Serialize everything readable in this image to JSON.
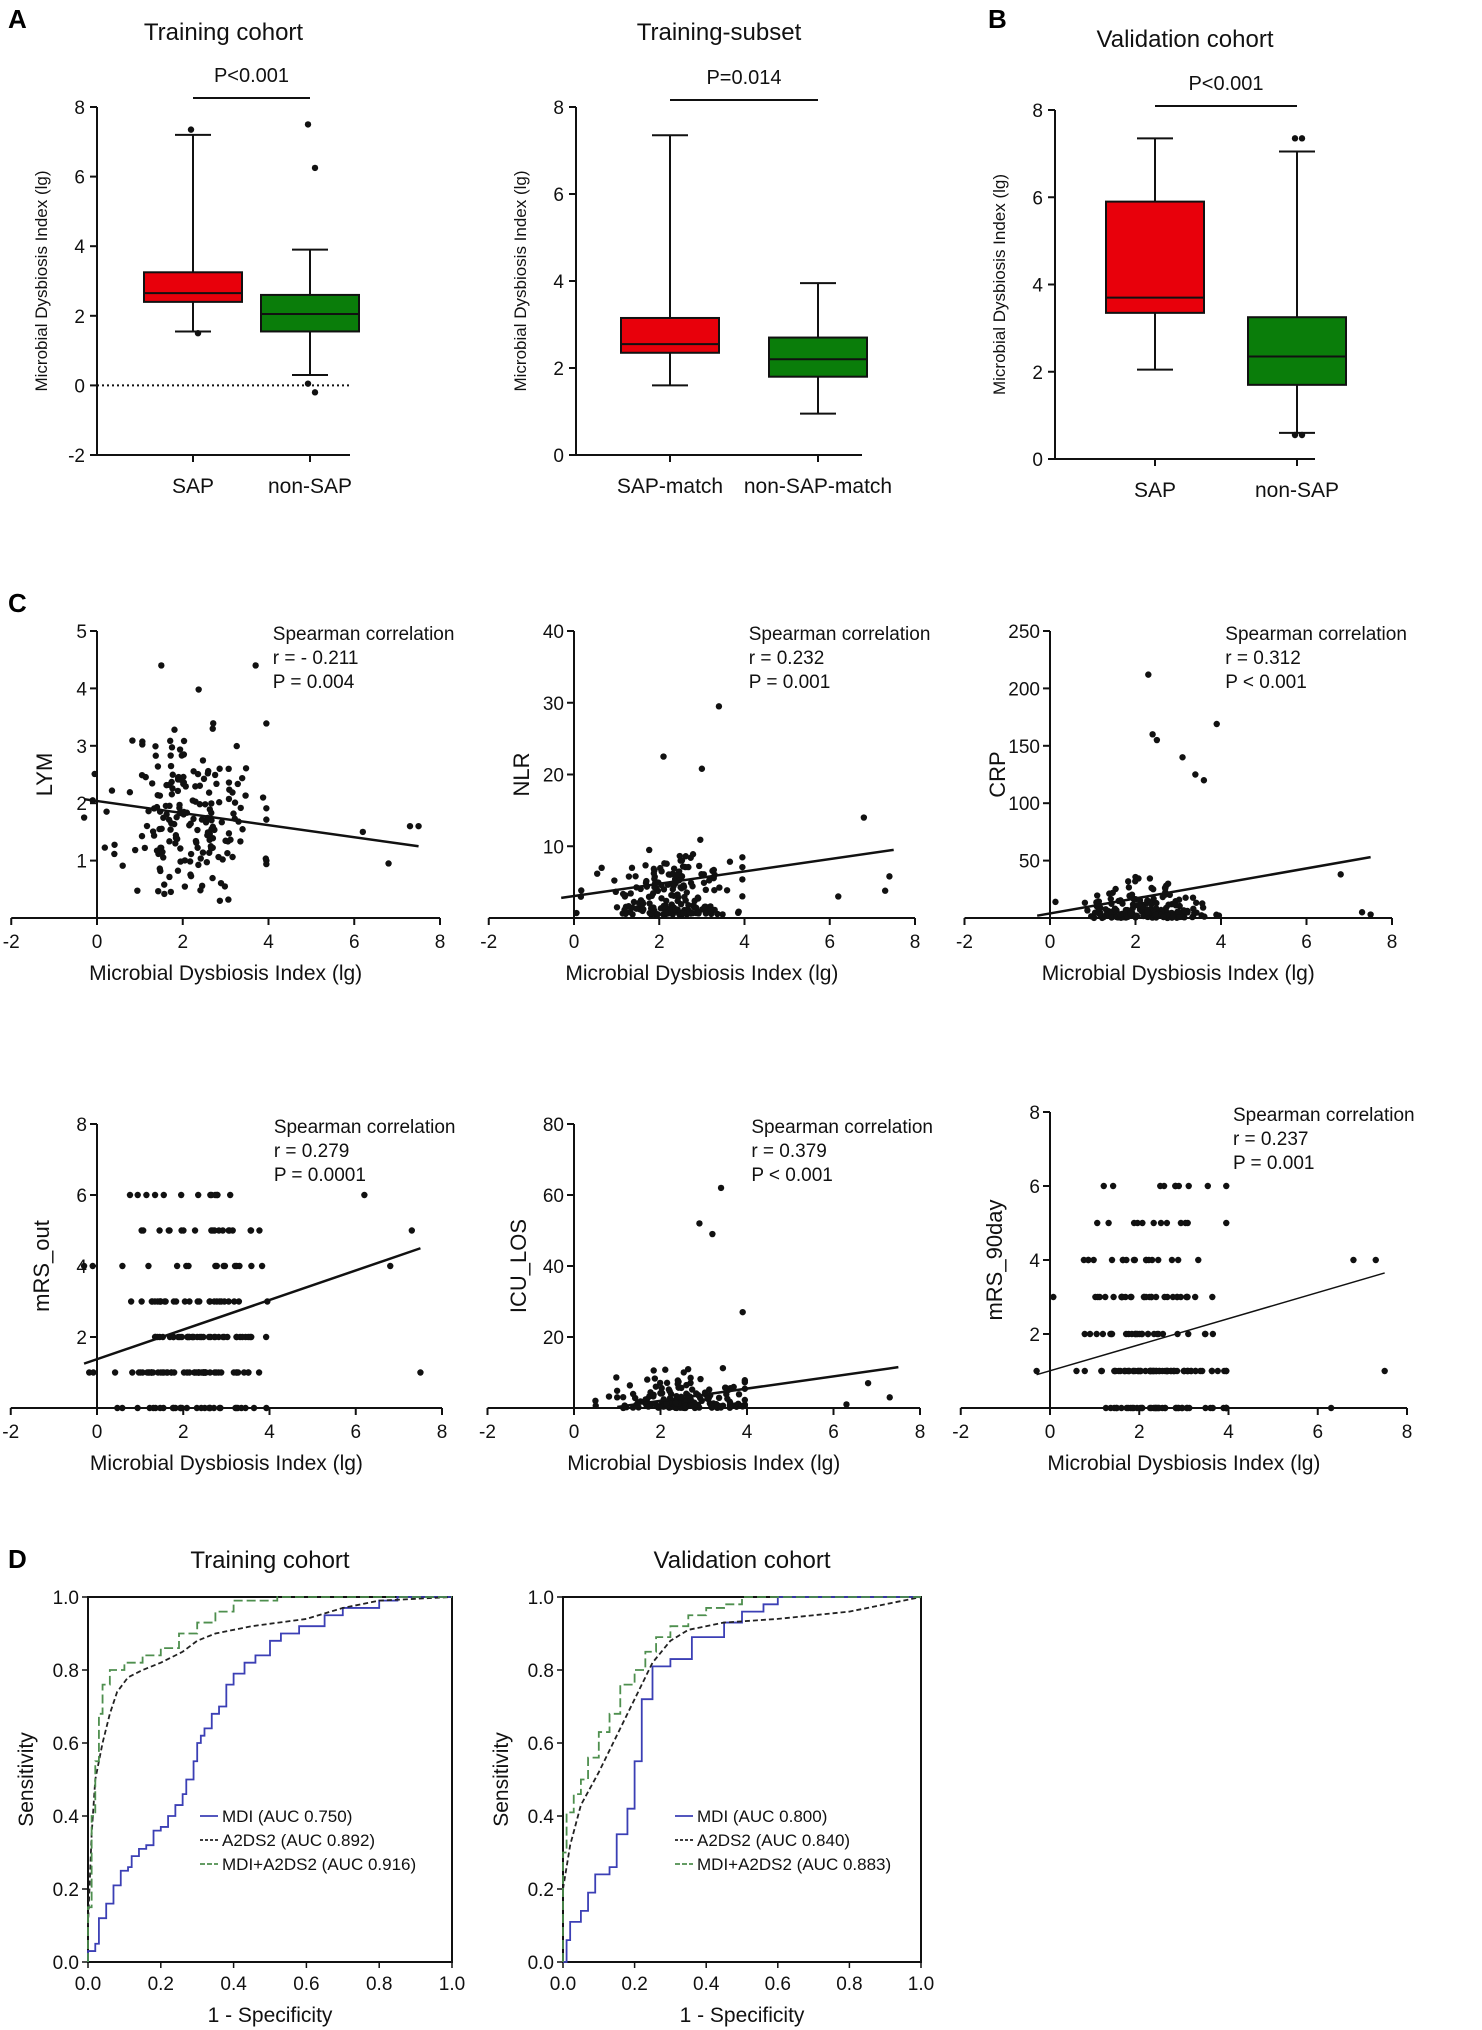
{
  "panel_letters": {
    "A": "A",
    "B": "B",
    "C": "C",
    "D": "D"
  },
  "chart_data": [
    {
      "id": "box-training",
      "type": "box",
      "title": "Training cohort",
      "ylabel": "Microbial Dysbiosis Index (lg)",
      "ylim": [
        -2,
        8
      ],
      "yticks": [
        -2,
        0,
        2,
        4,
        6,
        8
      ],
      "categories": [
        "SAP",
        "non-SAP"
      ],
      "reference_line": 0,
      "significance": "P<0.001",
      "boxes": [
        {
          "name": "SAP",
          "color": "#e8000b",
          "min": 1.55,
          "q1": 2.4,
          "median": 2.65,
          "q3": 3.25,
          "max": 7.2,
          "outliers": [
            7.35,
            1.5
          ]
        },
        {
          "name": "non-SAP",
          "color": "#0a7d0a",
          "min": 0.3,
          "q1": 1.55,
          "median": 2.05,
          "q3": 2.6,
          "max": 3.9,
          "outliers": [
            7.5,
            6.25,
            0.05,
            -0.2
          ]
        }
      ]
    },
    {
      "id": "box-subset",
      "type": "box",
      "title": "Training-subset",
      "ylabel": "Microbial Dysbiosis Index (lg)",
      "ylim": [
        0,
        8
      ],
      "yticks": [
        0,
        2,
        4,
        6,
        8
      ],
      "categories": [
        "SAP-match",
        "non-SAP-match"
      ],
      "significance": "P=0.014",
      "boxes": [
        {
          "name": "SAP-match",
          "color": "#e8000b",
          "min": 1.6,
          "q1": 2.35,
          "median": 2.55,
          "q3": 3.15,
          "max": 7.35,
          "outliers": []
        },
        {
          "name": "non-SAP-match",
          "color": "#0a7d0a",
          "min": 0.95,
          "q1": 1.8,
          "median": 2.2,
          "q3": 2.7,
          "max": 3.95,
          "outliers": []
        }
      ]
    },
    {
      "id": "box-validation",
      "type": "box",
      "title": "Validation cohort",
      "ylabel": "Microbial Dysbiosis Index (lg)",
      "ylim": [
        0,
        8
      ],
      "yticks": [
        0,
        2,
        4,
        6,
        8
      ],
      "categories": [
        "SAP",
        "non-SAP"
      ],
      "significance": "P<0.001",
      "boxes": [
        {
          "name": "SAP",
          "color": "#e8000b",
          "min": 2.05,
          "q1": 3.35,
          "median": 3.7,
          "q3": 5.9,
          "max": 7.35,
          "outliers": []
        },
        {
          "name": "non-SAP",
          "color": "#0a7d0a",
          "min": 0.6,
          "q1": 1.7,
          "median": 2.35,
          "q3": 3.25,
          "max": 7.05,
          "outliers": [
            7.35,
            7.35,
            0.55,
            0.55
          ]
        }
      ]
    },
    {
      "id": "sc-lym",
      "type": "scatter",
      "ylabel": "LYM",
      "xlabel": "Microbial Dysbiosis Index (lg)",
      "xlim": [
        -2,
        8
      ],
      "xticks": [
        -2,
        0,
        2,
        4,
        6,
        8
      ],
      "ylim": [
        0,
        5
      ],
      "yticks": [
        1,
        2,
        3,
        4,
        5
      ],
      "annotation": [
        "Spearman correlation",
        "r = - 0.211",
        "P = 0.004"
      ],
      "fit": [
        [
          -0.3,
          2.07
        ],
        [
          7.5,
          1.25
        ]
      ],
      "mode": "cont",
      "seed": 11,
      "mx": 2.2,
      "sx": 0.8,
      "my": 1.8,
      "sy": 0.8,
      "n": 190,
      "yq": 0,
      "ymax": 4.4,
      "ymin": 0.3,
      "extra": [
        [
          6.2,
          1.5
        ],
        [
          7.3,
          1.6
        ],
        [
          7.5,
          1.6
        ],
        [
          6.8,
          0.95
        ],
        [
          -0.3,
          1.75
        ],
        [
          -0.1,
          2.05
        ],
        [
          1.5,
          4.4
        ],
        [
          3.7,
          4.4
        ]
      ]
    },
    {
      "id": "sc-nlr",
      "type": "scatter",
      "ylabel": "NLR",
      "xlabel": "Microbial Dysbiosis Index (lg)",
      "xlim": [
        -2,
        8
      ],
      "xticks": [
        -2,
        0,
        2,
        4,
        6,
        8
      ],
      "ylim": [
        0,
        40
      ],
      "yticks": [
        10,
        20,
        30,
        40
      ],
      "annotation": [
        "Spearman correlation",
        "r = 0.232",
        "P = 0.001"
      ],
      "fit": [
        [
          -0.3,
          2.8
        ],
        [
          7.5,
          9.5
        ]
      ],
      "mode": "skew",
      "seed": 23,
      "mx": 2.2,
      "sx": 0.8,
      "my": 4,
      "sy": 3,
      "n": 190,
      "yq": 0,
      "ymax": 23,
      "ymin": 0.5,
      "extra": [
        [
          3.4,
          29.5
        ],
        [
          3.0,
          20.8
        ],
        [
          2.1,
          22.5
        ],
        [
          6.8,
          14
        ],
        [
          6.2,
          3
        ],
        [
          7.4,
          5.8
        ],
        [
          7.3,
          3.8
        ]
      ]
    },
    {
      "id": "sc-crp",
      "type": "scatter",
      "ylabel": "CRP",
      "xlabel": "Microbial Dysbiosis Index (lg)",
      "xlim": [
        -2,
        8
      ],
      "xticks": [
        -2,
        0,
        2,
        4,
        6,
        8
      ],
      "ylim": [
        0,
        250
      ],
      "yticks": [
        50,
        100,
        150,
        200,
        250
      ],
      "annotation": [
        "Spearman correlation",
        "r = 0.312",
        "P < 0.001"
      ],
      "fit": [
        [
          -0.3,
          2
        ],
        [
          7.5,
          53
        ]
      ],
      "mode": "skew",
      "seed": 37,
      "mx": 2.3,
      "sx": 0.7,
      "my": 8,
      "sy": 15,
      "n": 190,
      "yq": 0,
      "ymax": 100,
      "ymin": 0,
      "extra": [
        [
          2.3,
          212
        ],
        [
          2.4,
          160
        ],
        [
          2.5,
          155
        ],
        [
          3.9,
          169
        ],
        [
          3.6,
          120
        ],
        [
          3.1,
          140
        ],
        [
          3.4,
          125
        ],
        [
          6.8,
          38
        ],
        [
          7.3,
          5
        ],
        [
          7.5,
          3
        ]
      ]
    },
    {
      "id": "sc-mrsout",
      "type": "scatter",
      "ylabel": "mRS_out",
      "xlabel": "Microbial Dysbiosis Index (lg)",
      "xlim": [
        -2,
        8
      ],
      "xticks": [
        -2,
        0,
        2,
        4,
        6,
        8
      ],
      "ylim": [
        0,
        8
      ],
      "yticks": [
        2,
        4,
        6,
        8
      ],
      "annotation": [
        "Spearman correlation",
        "r = 0.279",
        "P = 0.0001"
      ],
      "fit": [
        [
          -0.3,
          1.25
        ],
        [
          7.5,
          4.5
        ]
      ],
      "mode": "disc",
      "seed": 51,
      "mx": 2.2,
      "sx": 0.8,
      "levels": [
        0,
        1,
        2,
        3,
        4,
        5,
        6
      ],
      "weights": [
        3,
        5,
        3,
        2,
        2,
        1,
        1
      ],
      "n": 200,
      "extra": [
        [
          6.2,
          6
        ],
        [
          6.8,
          4
        ],
        [
          7.3,
          5
        ],
        [
          7.5,
          1
        ],
        [
          -0.3,
          4
        ],
        [
          -0.1,
          4
        ]
      ]
    },
    {
      "id": "sc-icu",
      "type": "scatter",
      "ylabel": "ICU_LOS",
      "xlabel": "Microbial Dysbiosis Index (lg)",
      "xlim": [
        -2,
        8
      ],
      "xticks": [
        -2,
        0,
        2,
        4,
        6,
        8
      ],
      "ylim": [
        0,
        80
      ],
      "yticks": [
        20,
        40,
        60,
        80
      ],
      "annotation": [
        "Spearman correlation",
        "r = 0.379",
        "P < 0.001"
      ],
      "fit": [
        [
          1.0,
          0.3
        ],
        [
          7.5,
          11.5
        ]
      ],
      "mode": "skew",
      "seed": 67,
      "mx": 2.4,
      "sx": 0.7,
      "my": 1,
      "sy": 5,
      "n": 190,
      "yq": 0,
      "ymax": 20,
      "ymin": 0,
      "extra": [
        [
          3.4,
          62
        ],
        [
          2.9,
          52
        ],
        [
          3.2,
          49
        ],
        [
          3.9,
          27
        ],
        [
          6.8,
          7
        ],
        [
          7.3,
          3
        ],
        [
          6.3,
          1
        ]
      ]
    },
    {
      "id": "sc-mrs90",
      "type": "scatter",
      "ylabel": "mRS_90day",
      "xlabel": "Microbial Dysbiosis Index (lg)",
      "xlim": [
        -2,
        8
      ],
      "xticks": [
        -2,
        0,
        2,
        4,
        6,
        8
      ],
      "ylim": [
        0,
        8
      ],
      "yticks": [
        2,
        4,
        6,
        8
      ],
      "annotation": [
        "Spearman correlation",
        "r = 0.237",
        "P = 0.001"
      ],
      "fit": [
        [
          -0.3,
          0.9
        ],
        [
          7.5,
          3.65
        ]
      ],
      "mode": "disc",
      "seed": 83,
      "mx": 2.3,
      "sx": 0.8,
      "levels": [
        0,
        1,
        2,
        3,
        4,
        5,
        6
      ],
      "weights": [
        4,
        5,
        2,
        2,
        2,
        1,
        1
      ],
      "n": 210,
      "extra": [
        [
          6.8,
          4
        ],
        [
          7.3,
          4
        ],
        [
          7.5,
          1
        ],
        [
          6.3,
          0
        ],
        [
          -0.3,
          1
        ]
      ]
    },
    {
      "id": "roc-training",
      "type": "roc",
      "title": "Training cohort",
      "xlabel": "1 - Specificity",
      "ylabel": "Sensitivity",
      "ticks": [
        0.0,
        0.2,
        0.4,
        0.6,
        0.8,
        1.0
      ],
      "series": [
        {
          "name": "MDI (AUC 0.750)",
          "color": "#3b3fb5",
          "dash": "",
          "step": true,
          "points": [
            [
              0,
              0
            ],
            [
              0,
              0.03
            ],
            [
              0.02,
              0.05
            ],
            [
              0.03,
              0.12
            ],
            [
              0.05,
              0.16
            ],
            [
              0.07,
              0.21
            ],
            [
              0.09,
              0.25
            ],
            [
              0.11,
              0.26
            ],
            [
              0.12,
              0.29
            ],
            [
              0.14,
              0.31
            ],
            [
              0.16,
              0.32
            ],
            [
              0.18,
              0.36
            ],
            [
              0.2,
              0.37
            ],
            [
              0.22,
              0.4
            ],
            [
              0.24,
              0.43
            ],
            [
              0.26,
              0.46
            ],
            [
              0.27,
              0.5
            ],
            [
              0.29,
              0.55
            ],
            [
              0.3,
              0.6
            ],
            [
              0.31,
              0.62
            ],
            [
              0.32,
              0.64
            ],
            [
              0.34,
              0.68
            ],
            [
              0.36,
              0.7
            ],
            [
              0.38,
              0.76
            ],
            [
              0.4,
              0.79
            ],
            [
              0.43,
              0.82
            ],
            [
              0.46,
              0.84
            ],
            [
              0.5,
              0.88
            ],
            [
              0.53,
              0.9
            ],
            [
              0.58,
              0.92
            ],
            [
              0.65,
              0.95
            ],
            [
              0.7,
              0.97
            ],
            [
              0.8,
              0.99
            ],
            [
              0.85,
              1.0
            ],
            [
              1,
              1
            ]
          ]
        },
        {
          "name": "A2DS2 (AUC 0.892)",
          "color": "#222222",
          "dash": "5,3",
          "step": false,
          "points": [
            [
              0,
              0.1
            ],
            [
              0.01,
              0.35
            ],
            [
              0.02,
              0.5
            ],
            [
              0.04,
              0.6
            ],
            [
              0.06,
              0.68
            ],
            [
              0.08,
              0.74
            ],
            [
              0.11,
              0.78
            ],
            [
              0.15,
              0.8
            ],
            [
              0.2,
              0.82
            ],
            [
              0.26,
              0.85
            ],
            [
              0.3,
              0.88
            ],
            [
              0.35,
              0.9
            ],
            [
              0.45,
              0.92
            ],
            [
              0.6,
              0.94
            ],
            [
              0.7,
              0.97
            ],
            [
              0.8,
              0.99
            ],
            [
              1,
              1
            ]
          ]
        },
        {
          "name": "MDI+A2DS2 (AUC 0.916)",
          "color": "#4e8f4e",
          "dash": "9,4",
          "step": true,
          "points": [
            [
              0,
              0
            ],
            [
              0,
              0.15
            ],
            [
              0.01,
              0.4
            ],
            [
              0.02,
              0.55
            ],
            [
              0.03,
              0.68
            ],
            [
              0.04,
              0.76
            ],
            [
              0.06,
              0.8
            ],
            [
              0.1,
              0.82
            ],
            [
              0.15,
              0.84
            ],
            [
              0.2,
              0.86
            ],
            [
              0.25,
              0.9
            ],
            [
              0.3,
              0.93
            ],
            [
              0.35,
              0.96
            ],
            [
              0.4,
              0.99
            ],
            [
              0.52,
              1.0
            ],
            [
              1,
              1
            ]
          ]
        }
      ]
    },
    {
      "id": "roc-validation",
      "type": "roc",
      "title": "Validation cohort",
      "xlabel": "1 - Specificity",
      "ylabel": "Sensitivity",
      "ticks": [
        0.0,
        0.2,
        0.4,
        0.6,
        0.8,
        1.0
      ],
      "series": [
        {
          "name": "MDI (AUC 0.800)",
          "color": "#3b3fb5",
          "dash": "",
          "step": true,
          "points": [
            [
              0,
              0
            ],
            [
              0.01,
              0.06
            ],
            [
              0.02,
              0.11
            ],
            [
              0.05,
              0.14
            ],
            [
              0.07,
              0.19
            ],
            [
              0.09,
              0.24
            ],
            [
              0.13,
              0.26
            ],
            [
              0.15,
              0.35
            ],
            [
              0.18,
              0.42
            ],
            [
              0.2,
              0.55
            ],
            [
              0.22,
              0.72
            ],
            [
              0.25,
              0.81
            ],
            [
              0.3,
              0.83
            ],
            [
              0.36,
              0.89
            ],
            [
              0.45,
              0.93
            ],
            [
              0.5,
              0.96
            ],
            [
              0.56,
              0.98
            ],
            [
              0.6,
              1.0
            ],
            [
              1,
              1
            ]
          ]
        },
        {
          "name": "A2DS2 (AUC 0.840)",
          "color": "#222222",
          "dash": "5,3",
          "step": false,
          "points": [
            [
              0,
              0.2
            ],
            [
              0.02,
              0.32
            ],
            [
              0.05,
              0.43
            ],
            [
              0.1,
              0.52
            ],
            [
              0.15,
              0.62
            ],
            [
              0.2,
              0.72
            ],
            [
              0.25,
              0.82
            ],
            [
              0.3,
              0.88
            ],
            [
              0.35,
              0.91
            ],
            [
              0.45,
              0.93
            ],
            [
              0.6,
              0.94
            ],
            [
              0.8,
              0.96
            ],
            [
              0.9,
              0.98
            ],
            [
              1,
              1
            ]
          ]
        },
        {
          "name": "MDI+A2DS2 (AUC 0.883)",
          "color": "#4e8f4e",
          "dash": "9,4",
          "step": true,
          "points": [
            [
              0,
              0
            ],
            [
              0,
              0.3
            ],
            [
              0.01,
              0.41
            ],
            [
              0.03,
              0.46
            ],
            [
              0.05,
              0.5
            ],
            [
              0.07,
              0.56
            ],
            [
              0.1,
              0.63
            ],
            [
              0.13,
              0.68
            ],
            [
              0.16,
              0.76
            ],
            [
              0.2,
              0.8
            ],
            [
              0.23,
              0.85
            ],
            [
              0.26,
              0.89
            ],
            [
              0.3,
              0.92
            ],
            [
              0.35,
              0.95
            ],
            [
              0.4,
              0.97
            ],
            [
              0.45,
              0.98
            ],
            [
              0.5,
              1.0
            ],
            [
              1,
              1
            ]
          ]
        }
      ]
    }
  ]
}
